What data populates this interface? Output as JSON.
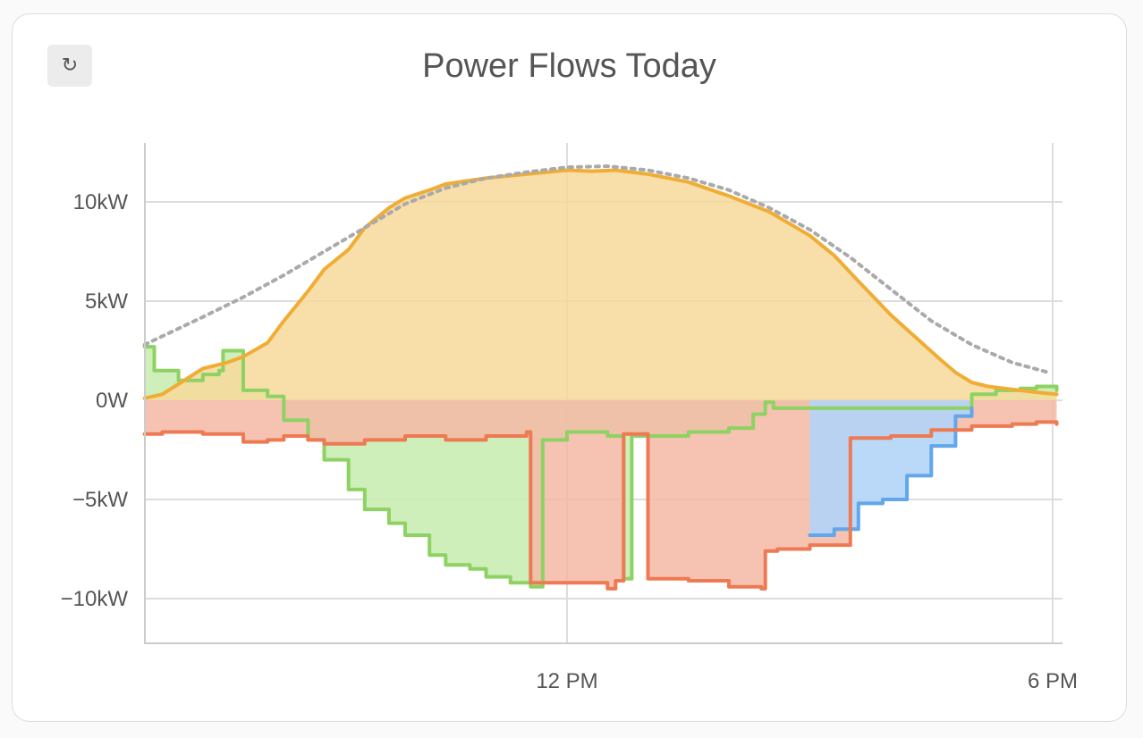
{
  "card": {
    "title": "Power Flows Today"
  },
  "controls": {
    "refresh_icon": "refresh-icon",
    "refresh_glyph": "↻"
  },
  "chart_data": {
    "type": "area",
    "title": "Power Flows Today",
    "xlabel": "",
    "ylabel": "",
    "ylim": [
      -12.4,
      13.2
    ],
    "xlim": [
      6.77,
      18.05
    ],
    "grid": true,
    "legend": "none",
    "y_tick_labels": [
      "10kW",
      "5kW",
      "0W",
      "−5kW",
      "−10kW"
    ],
    "y_ticks": [
      10,
      5,
      0,
      -5,
      -10
    ],
    "x_tick_labels": [
      "12 PM",
      "6 PM"
    ],
    "x_ticks": [
      12,
      18
    ],
    "colors": {
      "solar": "#f0ad36",
      "solar_fill": "#f7d99a",
      "forecast": "#aaaaaa",
      "grid": "#8ed263",
      "grid_fill": "#c9ecb3",
      "battery": "#ed7a52",
      "battery_fill": "#f5b9a6",
      "import": "#62a6ec",
      "import_fill": "#b3d4f7"
    },
    "series": [
      {
        "key": "forecast",
        "x": [
          6.78,
          7.5,
          8.0,
          8.5,
          9.0,
          9.5,
          10.0,
          10.5,
          11.0,
          11.5,
          12.0,
          12.5,
          13.0,
          13.5,
          14.0,
          14.5,
          15.0,
          15.5,
          16.0,
          16.5,
          17.0,
          17.5,
          17.95
        ],
        "y": [
          2.8,
          4.2,
          5.2,
          6.3,
          7.5,
          8.7,
          9.9,
          10.7,
          11.2,
          11.5,
          11.75,
          11.8,
          11.6,
          11.2,
          10.6,
          9.7,
          8.6,
          7.2,
          5.6,
          4.0,
          2.8,
          1.9,
          1.4
        ]
      },
      {
        "key": "solar",
        "x": [
          6.78,
          7.0,
          7.5,
          7.8,
          8.0,
          8.3,
          8.5,
          8.8,
          9.0,
          9.3,
          9.5,
          9.8,
          10.0,
          10.3,
          10.5,
          11.0,
          11.5,
          12.0,
          12.3,
          12.6,
          13.0,
          13.5,
          14.0,
          14.5,
          15.0,
          15.3,
          15.6,
          16.0,
          16.3,
          16.6,
          16.8,
          17.0,
          17.2,
          17.4,
          17.6,
          17.8,
          18.05
        ],
        "y": [
          0.1,
          0.3,
          1.6,
          1.9,
          2.2,
          2.9,
          4.0,
          5.5,
          6.6,
          7.6,
          8.7,
          9.7,
          10.2,
          10.6,
          10.9,
          11.2,
          11.4,
          11.6,
          11.55,
          11.6,
          11.4,
          11.0,
          10.3,
          9.5,
          8.3,
          7.3,
          6.0,
          4.3,
          3.2,
          2.1,
          1.4,
          0.9,
          0.7,
          0.6,
          0.5,
          0.4,
          0.3
        ]
      },
      {
        "key": "grid",
        "x": [
          6.78,
          6.9,
          7.2,
          7.5,
          7.7,
          7.75,
          8.0,
          8.3,
          8.5,
          8.8,
          9.0,
          9.3,
          9.5,
          9.8,
          10.0,
          10.3,
          10.5,
          10.8,
          11.0,
          11.3,
          11.55,
          11.7,
          12.0,
          12.5,
          12.7,
          12.8,
          13.0,
          13.5,
          14.0,
          14.3,
          14.45,
          14.55,
          17.0,
          17.3,
          17.6,
          17.8,
          18.05
        ],
        "y": [
          2.7,
          1.5,
          1.0,
          1.3,
          1.5,
          2.5,
          0.5,
          0.2,
          -1.0,
          -2.0,
          -3.0,
          -4.5,
          -5.5,
          -6.2,
          -6.8,
          -7.8,
          -8.3,
          -8.5,
          -8.9,
          -9.2,
          -9.4,
          -2.0,
          -1.6,
          -1.8,
          -9.0,
          -1.8,
          -1.8,
          -1.6,
          -1.4,
          -0.7,
          -0.1,
          -0.4,
          0.3,
          0.5,
          0.6,
          0.7,
          0.5
        ]
      },
      {
        "key": "battery",
        "x": [
          6.78,
          7.0,
          7.5,
          8.0,
          8.3,
          8.5,
          8.8,
          9.0,
          9.5,
          10.0,
          10.5,
          11.0,
          11.5,
          11.55,
          12.0,
          12.5,
          12.6,
          12.7,
          13.0,
          13.5,
          14.0,
          14.4,
          14.45,
          14.6,
          15.0,
          15.5,
          16.0,
          16.5,
          17.0,
          17.5,
          17.8,
          18.05
        ],
        "y": [
          -1.7,
          -1.6,
          -1.7,
          -2.1,
          -2.0,
          -1.8,
          -2.0,
          -2.2,
          -2.0,
          -1.8,
          -2.0,
          -1.8,
          -1.6,
          -9.2,
          -9.2,
          -9.5,
          -9.1,
          -1.7,
          -9.0,
          -9.1,
          -9.4,
          -9.5,
          -7.6,
          -7.5,
          -7.3,
          -1.9,
          -1.8,
          -1.5,
          -1.3,
          -1.2,
          -1.1,
          -1.2
        ]
      },
      {
        "key": "import",
        "x": [
          15.0,
          15.3,
          15.6,
          15.9,
          16.2,
          16.5,
          16.8,
          17.0
        ],
        "y": [
          -6.8,
          -6.5,
          -5.2,
          -5.0,
          -3.8,
          -2.3,
          -0.8,
          -0.4
        ]
      }
    ]
  }
}
